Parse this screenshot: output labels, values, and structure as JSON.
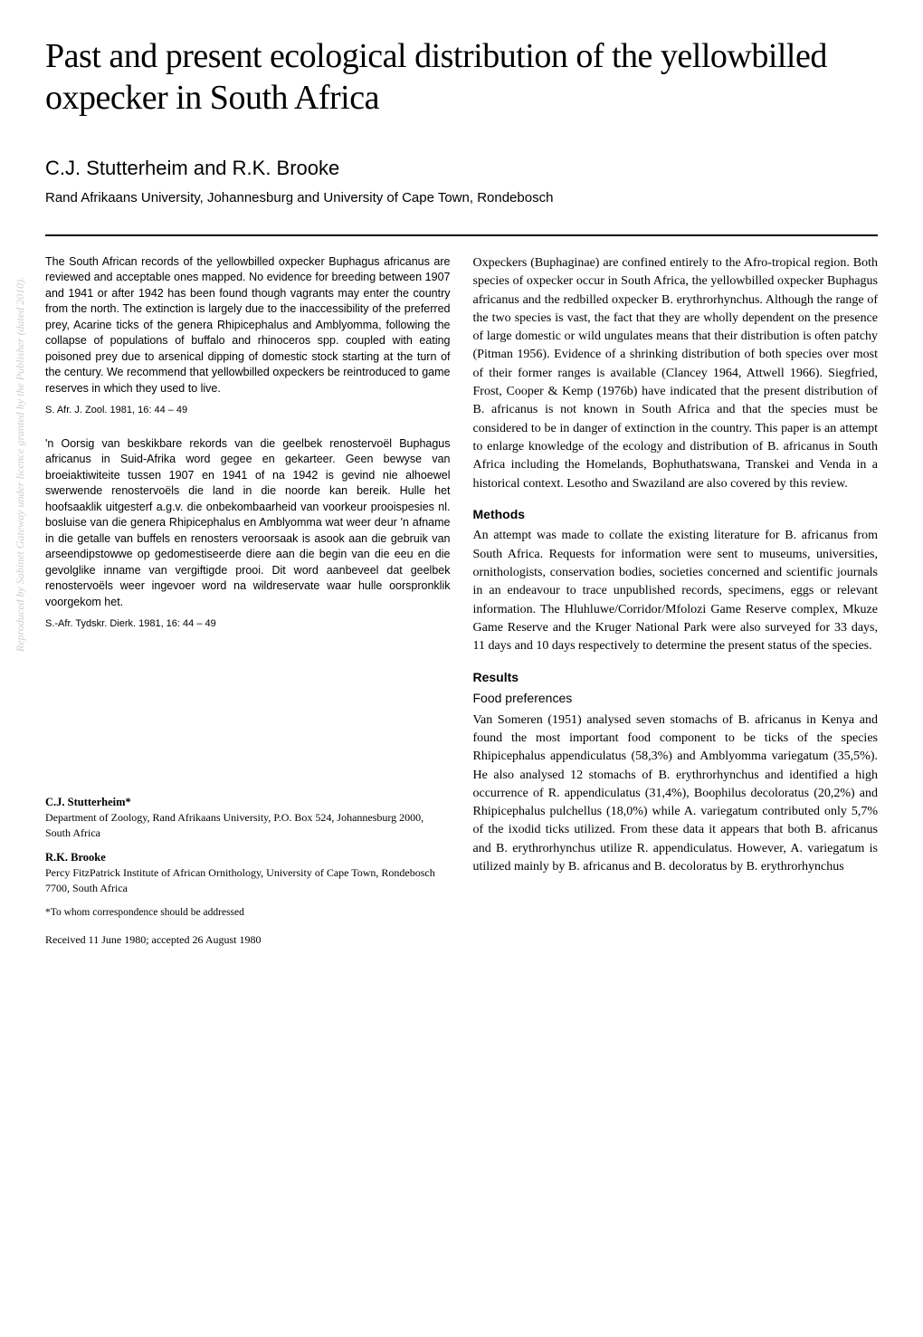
{
  "title": "Past and present ecological distribution of the yellowbilled oxpecker in South Africa",
  "authors": "C.J. Stutterheim and R.K. Brooke",
  "affiliation": "Rand Afrikaans University, Johannesburg and University of Cape Town, Rondebosch",
  "abstract_en": "The South African records of the yellowbilled oxpecker Buphagus africanus are reviewed and acceptable ones mapped. No evidence for breeding between 1907 and 1941 or after 1942 has been found though vagrants may enter the country from the north. The extinction is largely due to the inaccessibility of the preferred prey, Acarine ticks of the genera Rhipicephalus and Amblyomma, following the collapse of populations of buffalo and rhinoceros spp. coupled with eating poisoned prey due to arsenical dipping of domestic stock starting at the turn of the century. We recommend that yellowbilled oxpeckers be reintroduced to game reserves in which they used to live.",
  "citation_en": "S. Afr. J. Zool. 1981, 16: 44 – 49",
  "abstract_af": "'n Oorsig van beskikbare rekords van die geelbek renostervoël Buphagus africanus in Suid-Afrika word gegee en gekarteer. Geen bewyse van broeiaktiwiteite tussen 1907 en 1941 of na 1942 is gevind nie alhoewel swerwende renostervoëls die land in die noorde kan bereik. Hulle het hoofsaaklik uitgesterf a.g.v. die onbekombaarheid van voorkeur prooispesies nl. bosluise van die genera Rhipicephalus en Amblyomma wat weer deur 'n afname in die getalle van buffels en renosters veroorsaak is asook aan die gebruik van arseendipstowwe op gedomestiseerde diere aan die begin van die eeu en die gevolglike inname van vergiftigde prooi. Dit word aanbeveel dat geelbek renostervoëls weer ingevoer word na wildreservate waar hulle oorspronklik voorgekom het.",
  "citation_af": "S.-Afr. Tydskr. Dierk. 1981, 16: 44 – 49",
  "author1_name": "C.J. Stutterheim*",
  "author1_address": "Department of Zoology, Rand Afrikaans University, P.O. Box 524, Johannesburg 2000, South Africa",
  "author2_name": "R.K. Brooke",
  "author2_address": "Percy FitzPatrick Institute of African Ornithology, University of Cape Town, Rondebosch 7700, South Africa",
  "correspondence": "*To whom correspondence should be addressed",
  "received": "Received 11 June 1980; accepted 26 August 1980",
  "intro_para": "Oxpeckers (Buphaginae) are confined entirely to the Afro-tropical region. Both species of oxpecker occur in South Africa, the yellowbilled oxpecker Buphagus africanus and the redbilled oxpecker B. erythrorhynchus. Although the range of the two species is vast, the fact that they are wholly dependent on the presence of large domestic or wild ungulates means that their distribution is often patchy (Pitman 1956). Evidence of a shrinking distribution of both species over most of their former ranges is available (Clancey 1964, Attwell 1966). Siegfried, Frost, Cooper & Kemp (1976b) have indicated that the present distribution of B. africanus is not known in South Africa and that the species must be considered to be in danger of extinction in the country. This paper is an attempt to enlarge knowledge of the ecology and distribution of B. africanus in South Africa including the Homelands, Bophuthatswana, Transkei and Venda in a historical context. Lesotho and Swaziland are also covered by this review.",
  "methods_heading": "Methods",
  "methods_para": "An attempt was made to collate the existing literature for B. africanus from South Africa. Requests for information were sent to museums, universities, ornithologists, conservation bodies, societies concerned and scientific journals in an endeavour to trace unpublished records, specimens, eggs or relevant information. The Hluhluwe/Corridor/Mfolozi Game Reserve complex, Mkuze Game Reserve and the Kruger National Park were also surveyed for 33 days, 11 days and 10 days respectively to determine the present status of the species.",
  "results_heading": "Results",
  "results_subheading": "Food preferences",
  "results_para": "Van Someren (1951) analysed seven stomachs of B. africanus in Kenya and found the most important food component to be ticks of the species Rhipicephalus appendiculatus (58,3%) and Amblyomma variegatum (35,5%). He also analysed 12 stomachs of B. erythrorhynchus and identified a high occurrence of R. appendiculatus (31,4%), Boophilus decoloratus (20,2%) and Rhipicephalus pulchellus (18,0%) while A. variegatum contributed only 5,7% of the ixodid ticks utilized. From these data it appears that both B. africanus and B. erythrorhynchus utilize R. appendiculatus. However, A. variegatum is utilized mainly by B. africanus and B. decoloratus by B. erythrorhynchus",
  "watermark": "Reproduced by Sabinet Gateway under licence granted by the Publisher (dated 2010)."
}
